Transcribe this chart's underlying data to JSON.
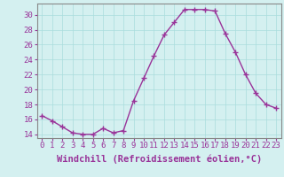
{
  "x": [
    0,
    1,
    2,
    3,
    4,
    5,
    6,
    7,
    8,
    9,
    10,
    11,
    12,
    13,
    14,
    15,
    16,
    17,
    18,
    19,
    20,
    21,
    22,
    23
  ],
  "y": [
    16.5,
    15.8,
    15.0,
    14.2,
    14.0,
    14.0,
    14.8,
    14.2,
    14.5,
    18.5,
    21.5,
    24.5,
    27.3,
    29.0,
    30.7,
    30.7,
    30.7,
    30.5,
    27.5,
    25.0,
    22.0,
    19.5,
    18.0,
    17.5
  ],
  "line_color": "#993399",
  "marker": "+",
  "marker_size": 4,
  "marker_linewidth": 1.0,
  "background_color": "#d4f0f0",
  "grid_color": "#aadddd",
  "xlabel": "Windchill (Refroidissement éolien,°C)",
  "xlabel_color": "#993399",
  "xlabel_fontsize": 7.5,
  "ytick_values": [
    14,
    16,
    18,
    20,
    22,
    24,
    26,
    28,
    30
  ],
  "ylim": [
    13.5,
    31.5
  ],
  "xlim": [
    -0.5,
    23.5
  ],
  "tick_color": "#993399",
  "tick_fontsize": 6.5,
  "axis_color": "#888888",
  "linewidth": 1.0
}
